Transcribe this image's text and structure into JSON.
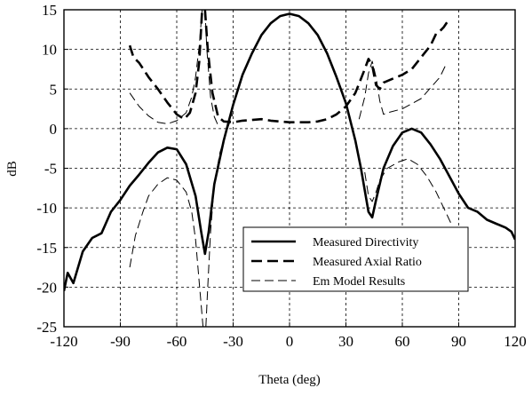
{
  "chart_data": {
    "type": "line",
    "title": "",
    "xlabel": "Theta (deg)",
    "ylabel": "dB",
    "xlim": [
      -120,
      120
    ],
    "ylim": [
      -25,
      15
    ],
    "xticks": [
      -120,
      -90,
      -60,
      -30,
      0,
      30,
      60,
      90,
      120
    ],
    "yticks": [
      -25,
      -20,
      -15,
      -10,
      -5,
      0,
      5,
      10,
      15
    ],
    "grid": true,
    "legend_position": "lower-right",
    "series": [
      {
        "name": "Measured Directivity",
        "style": "solid-thick",
        "color": "#000000",
        "points": [
          [
            [
              -120,
              -20.5
            ],
            [
              -118,
              -18.2
            ],
            [
              -115,
              -19.5
            ],
            [
              -110,
              -15.5
            ],
            [
              -105,
              -13.8
            ],
            [
              -100,
              -13.2
            ],
            [
              -95,
              -10.5
            ],
            [
              -90,
              -9
            ],
            [
              -85,
              -7.2
            ],
            [
              -80,
              -5.8
            ],
            [
              -75,
              -4.3
            ],
            [
              -70,
              -3
            ],
            [
              -65,
              -2.4
            ],
            [
              -60,
              -2.6
            ],
            [
              -55,
              -4.5
            ],
            [
              -50,
              -8.5
            ],
            [
              -47,
              -13
            ],
            [
              -45,
              -15.8
            ],
            [
              -43,
              -13
            ],
            [
              -40,
              -7
            ],
            [
              -35,
              -1.5
            ],
            [
              -30,
              3
            ],
            [
              -25,
              6.8
            ],
            [
              -20,
              9.5
            ],
            [
              -15,
              11.8
            ],
            [
              -10,
              13.3
            ],
            [
              -5,
              14.2
            ],
            [
              0,
              14.5
            ],
            [
              5,
              14.2
            ],
            [
              10,
              13.3
            ],
            [
              15,
              11.8
            ],
            [
              20,
              9.5
            ],
            [
              25,
              6.5
            ],
            [
              30,
              3.2
            ],
            [
              35,
              -1.5
            ],
            [
              38,
              -5
            ],
            [
              42,
              -10.5
            ],
            [
              44,
              -11.2
            ],
            [
              46,
              -9
            ],
            [
              50,
              -5
            ],
            [
              55,
              -2.2
            ],
            [
              60,
              -0.5
            ],
            [
              65,
              0
            ],
            [
              70,
              -0.5
            ],
            [
              75,
              -2
            ],
            [
              80,
              -3.8
            ],
            [
              85,
              -6
            ],
            [
              90,
              -8.2
            ],
            [
              95,
              -10
            ],
            [
              100,
              -10.5
            ],
            [
              105,
              -11.5
            ],
            [
              110,
              -12
            ],
            [
              115,
              -12.5
            ],
            [
              118,
              -13
            ],
            [
              120,
              -14
            ]
          ]
        ]
      },
      {
        "name": "Measured Axial Ratio",
        "style": "dashed-thick",
        "color": "#000000",
        "points": [
          [
            [
              -85,
              10.5
            ],
            [
              -83,
              9
            ],
            [
              -80,
              8.3
            ],
            [
              -75,
              6.5
            ],
            [
              -70,
              5
            ],
            [
              -65,
              3.3
            ],
            [
              -60,
              1.8
            ],
            [
              -56,
              1.2
            ],
            [
              -53,
              2
            ],
            [
              -50,
              4.5
            ],
            [
              -48,
              8.5
            ],
            [
              -46.5,
              15
            ]
          ],
          [
            [
              -45,
              15
            ],
            [
              -43.5,
              10
            ],
            [
              -41,
              4.5
            ],
            [
              -38,
              1.5
            ],
            [
              -35,
              0.9
            ],
            [
              -30,
              0.8
            ],
            [
              -25,
              1
            ],
            [
              -20,
              1.1
            ],
            [
              -15,
              1.2
            ],
            [
              -10,
              1
            ],
            [
              -5,
              0.9
            ],
            [
              0,
              0.8
            ],
            [
              5,
              0.8
            ],
            [
              10,
              0.8
            ],
            [
              15,
              0.9
            ],
            [
              20,
              1.2
            ],
            [
              25,
              1.8
            ],
            [
              30,
              2.8
            ],
            [
              35,
              4.5
            ],
            [
              40,
              7.5
            ],
            [
              42,
              8.8
            ],
            [
              44,
              8
            ],
            [
              46,
              5.5
            ],
            [
              48,
              5
            ],
            [
              50,
              5.8
            ],
            [
              55,
              6.3
            ],
            [
              60,
              6.8
            ],
            [
              65,
              7.5
            ],
            [
              70,
              9
            ],
            [
              75,
              10.5
            ],
            [
              78,
              12
            ],
            [
              80,
              12.3
            ],
            [
              82,
              12.8
            ],
            [
              84,
              13.5
            ]
          ]
        ]
      },
      {
        "name": "Em Model Results",
        "style": "dashed-thin",
        "color": "#000000",
        "points": [
          [
            [
              -85,
              4.5
            ],
            [
              -80,
              2.8
            ],
            [
              -75,
              1.6
            ],
            [
              -70,
              0.8
            ],
            [
              -65,
              0.6
            ],
            [
              -60,
              1
            ],
            [
              -55,
              2
            ],
            [
              -52,
              4
            ],
            [
              -50,
              6.5
            ],
            [
              -48,
              10.5
            ],
            [
              -46.5,
              15
            ]
          ],
          [
            [
              -45,
              15
            ],
            [
              -44,
              10
            ],
            [
              -42,
              4
            ],
            [
              -40,
              1.5
            ],
            [
              -38,
              0.4
            ]
          ],
          [
            [
              37,
              1.2
            ],
            [
              40,
              4
            ],
            [
              42,
              7
            ],
            [
              44,
              8.5
            ],
            [
              46,
              6.5
            ],
            [
              48,
              3.5
            ],
            [
              50,
              1.8
            ],
            [
              52,
              2
            ],
            [
              60,
              2.5
            ],
            [
              70,
              3.8
            ],
            [
              80,
              6.5
            ],
            [
              83,
              8
            ]
          ],
          [
            [
              -85,
              -17.5
            ],
            [
              -82,
              -13.5
            ],
            [
              -78,
              -10.5
            ],
            [
              -75,
              -8.5
            ],
            [
              -70,
              -7
            ],
            [
              -65,
              -6.2
            ],
            [
              -60,
              -6.5
            ],
            [
              -55,
              -8
            ],
            [
              -52,
              -10.5
            ],
            [
              -50,
              -14
            ],
            [
              -48,
              -19.5
            ],
            [
              -46,
              -25
            ]
          ],
          [
            [
              -44.5,
              -25
            ],
            [
              -43.5,
              -20
            ],
            [
              -42,
              -13
            ],
            [
              -40,
              -7
            ],
            [
              -37,
              -3
            ],
            [
              -33,
              0
            ],
            [
              -30,
              2
            ]
          ],
          [
            [
              40,
              -5.5
            ],
            [
              42,
              -8.5
            ],
            [
              44,
              -9.2
            ],
            [
              46,
              -8
            ],
            [
              48,
              -6.5
            ],
            [
              52,
              -5
            ],
            [
              58,
              -4.2
            ],
            [
              63,
              -3.8
            ],
            [
              68,
              -4.5
            ],
            [
              73,
              -6
            ],
            [
              78,
              -8
            ],
            [
              83,
              -10.5
            ],
            [
              86,
              -12
            ]
          ]
        ]
      }
    ]
  }
}
